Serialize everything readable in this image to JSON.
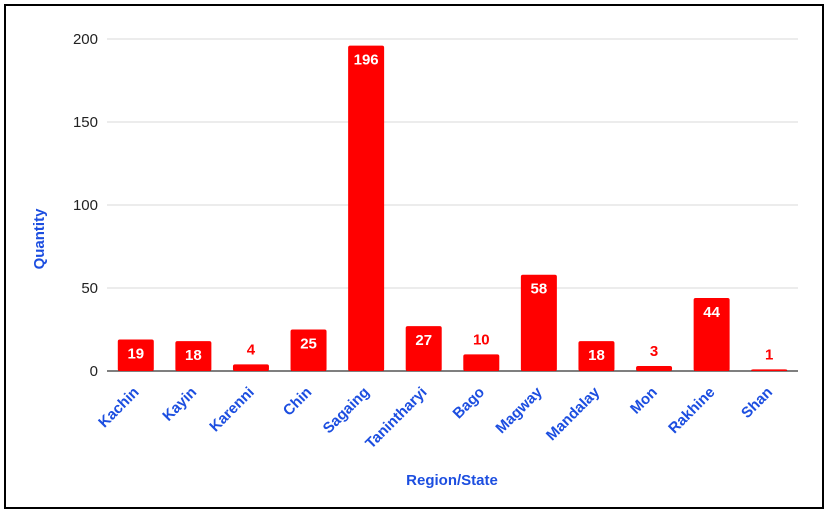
{
  "chart_data": {
    "type": "bar",
    "title": "",
    "xlabel": "Region/State",
    "ylabel": "Quantity",
    "categories": [
      "Kachin",
      "Kayin",
      "Karenni",
      "Chin",
      "Sagaing",
      "Tanintharyi",
      "Bago",
      "Magway",
      "Mandalay",
      "Mon",
      "Rakhine",
      "Shan"
    ],
    "values": [
      19,
      18,
      4,
      25,
      196,
      27,
      10,
      58,
      18,
      3,
      44,
      1
    ],
    "data_labels": [
      "19",
      "18",
      "4",
      "25",
      "196",
      "27",
      "10",
      "58",
      "18",
      "3",
      "44",
      "1"
    ],
    "ylim": [
      0,
      200
    ],
    "yticks": [
      "0",
      "50",
      "100",
      "150",
      "200"
    ],
    "grid": true,
    "legend": "none",
    "colors": {
      "bar": "#ff0000",
      "label_inside": "#ffffff",
      "label_outside": "#ff0000",
      "axis_text": "#1c4ee0",
      "tick_text": "#222222",
      "grid": "#d9d9d9"
    }
  }
}
